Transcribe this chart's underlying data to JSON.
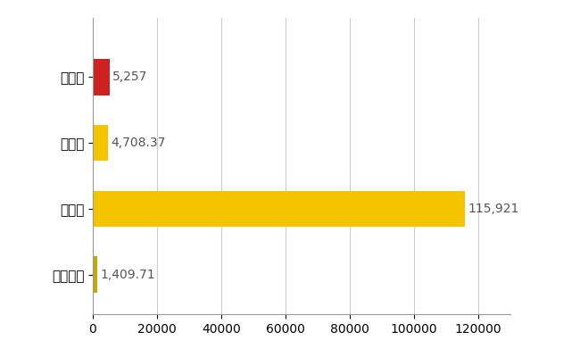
{
  "categories": [
    "町田市",
    "県平均",
    "県最大",
    "全国平均"
  ],
  "values": [
    5257,
    4708.37,
    115921,
    1409.71
  ],
  "bar_colors": [
    "#cc2222",
    "#f5c400",
    "#f5c400",
    "#c8a800"
  ],
  "value_labels": [
    "5,257",
    "4,708.37",
    "115,921",
    "1,409.71"
  ],
  "xlim": [
    0,
    130000
  ],
  "xticks": [
    0,
    20000,
    40000,
    60000,
    80000,
    100000,
    120000
  ],
  "xtick_labels": [
    "0",
    "20000",
    "40000",
    "60000",
    "80000",
    "100000",
    "120000"
  ],
  "background_color": "#ffffff",
  "bar_height": 0.55,
  "label_fontsize": 11,
  "tick_fontsize": 10,
  "value_fontsize": 10,
  "grid_color": "#cccccc"
}
